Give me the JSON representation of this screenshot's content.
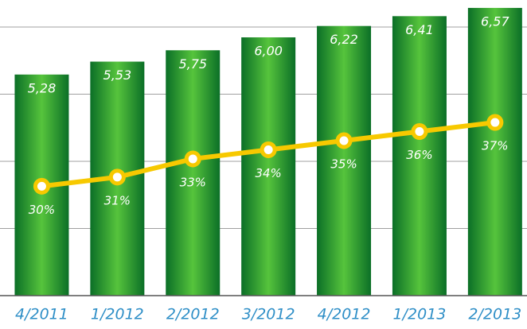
{
  "chart_data": {
    "type": "bar",
    "categories": [
      "4/2011",
      "1/2012",
      "2/2012",
      "3/2012",
      "4/2012",
      "1/2013",
      "2/2013"
    ],
    "ylim": [
      1,
      7
    ],
    "yticks": [
      1,
      2.3,
      3.6,
      4.9,
      6.2
    ],
    "grid": true,
    "y2lim": [
      18,
      52
    ],
    "series": [
      {
        "type": "bar",
        "color": "#159a32",
        "values": [
          5.28,
          5.53,
          5.75,
          6.0,
          6.22,
          6.41,
          6.57
        ],
        "value_labels": [
          "5,28",
          "5,53",
          "5,75",
          "6,00",
          "6,22",
          "6,41",
          "6,57"
        ]
      },
      {
        "type": "line",
        "axis": "y2",
        "color": "#f7c900",
        "values": [
          30,
          31,
          33,
          34,
          35,
          36,
          37
        ],
        "value_labels": [
          "30%",
          "31%",
          "33%",
          "34%",
          "35%",
          "36%",
          "37%"
        ]
      }
    ]
  }
}
